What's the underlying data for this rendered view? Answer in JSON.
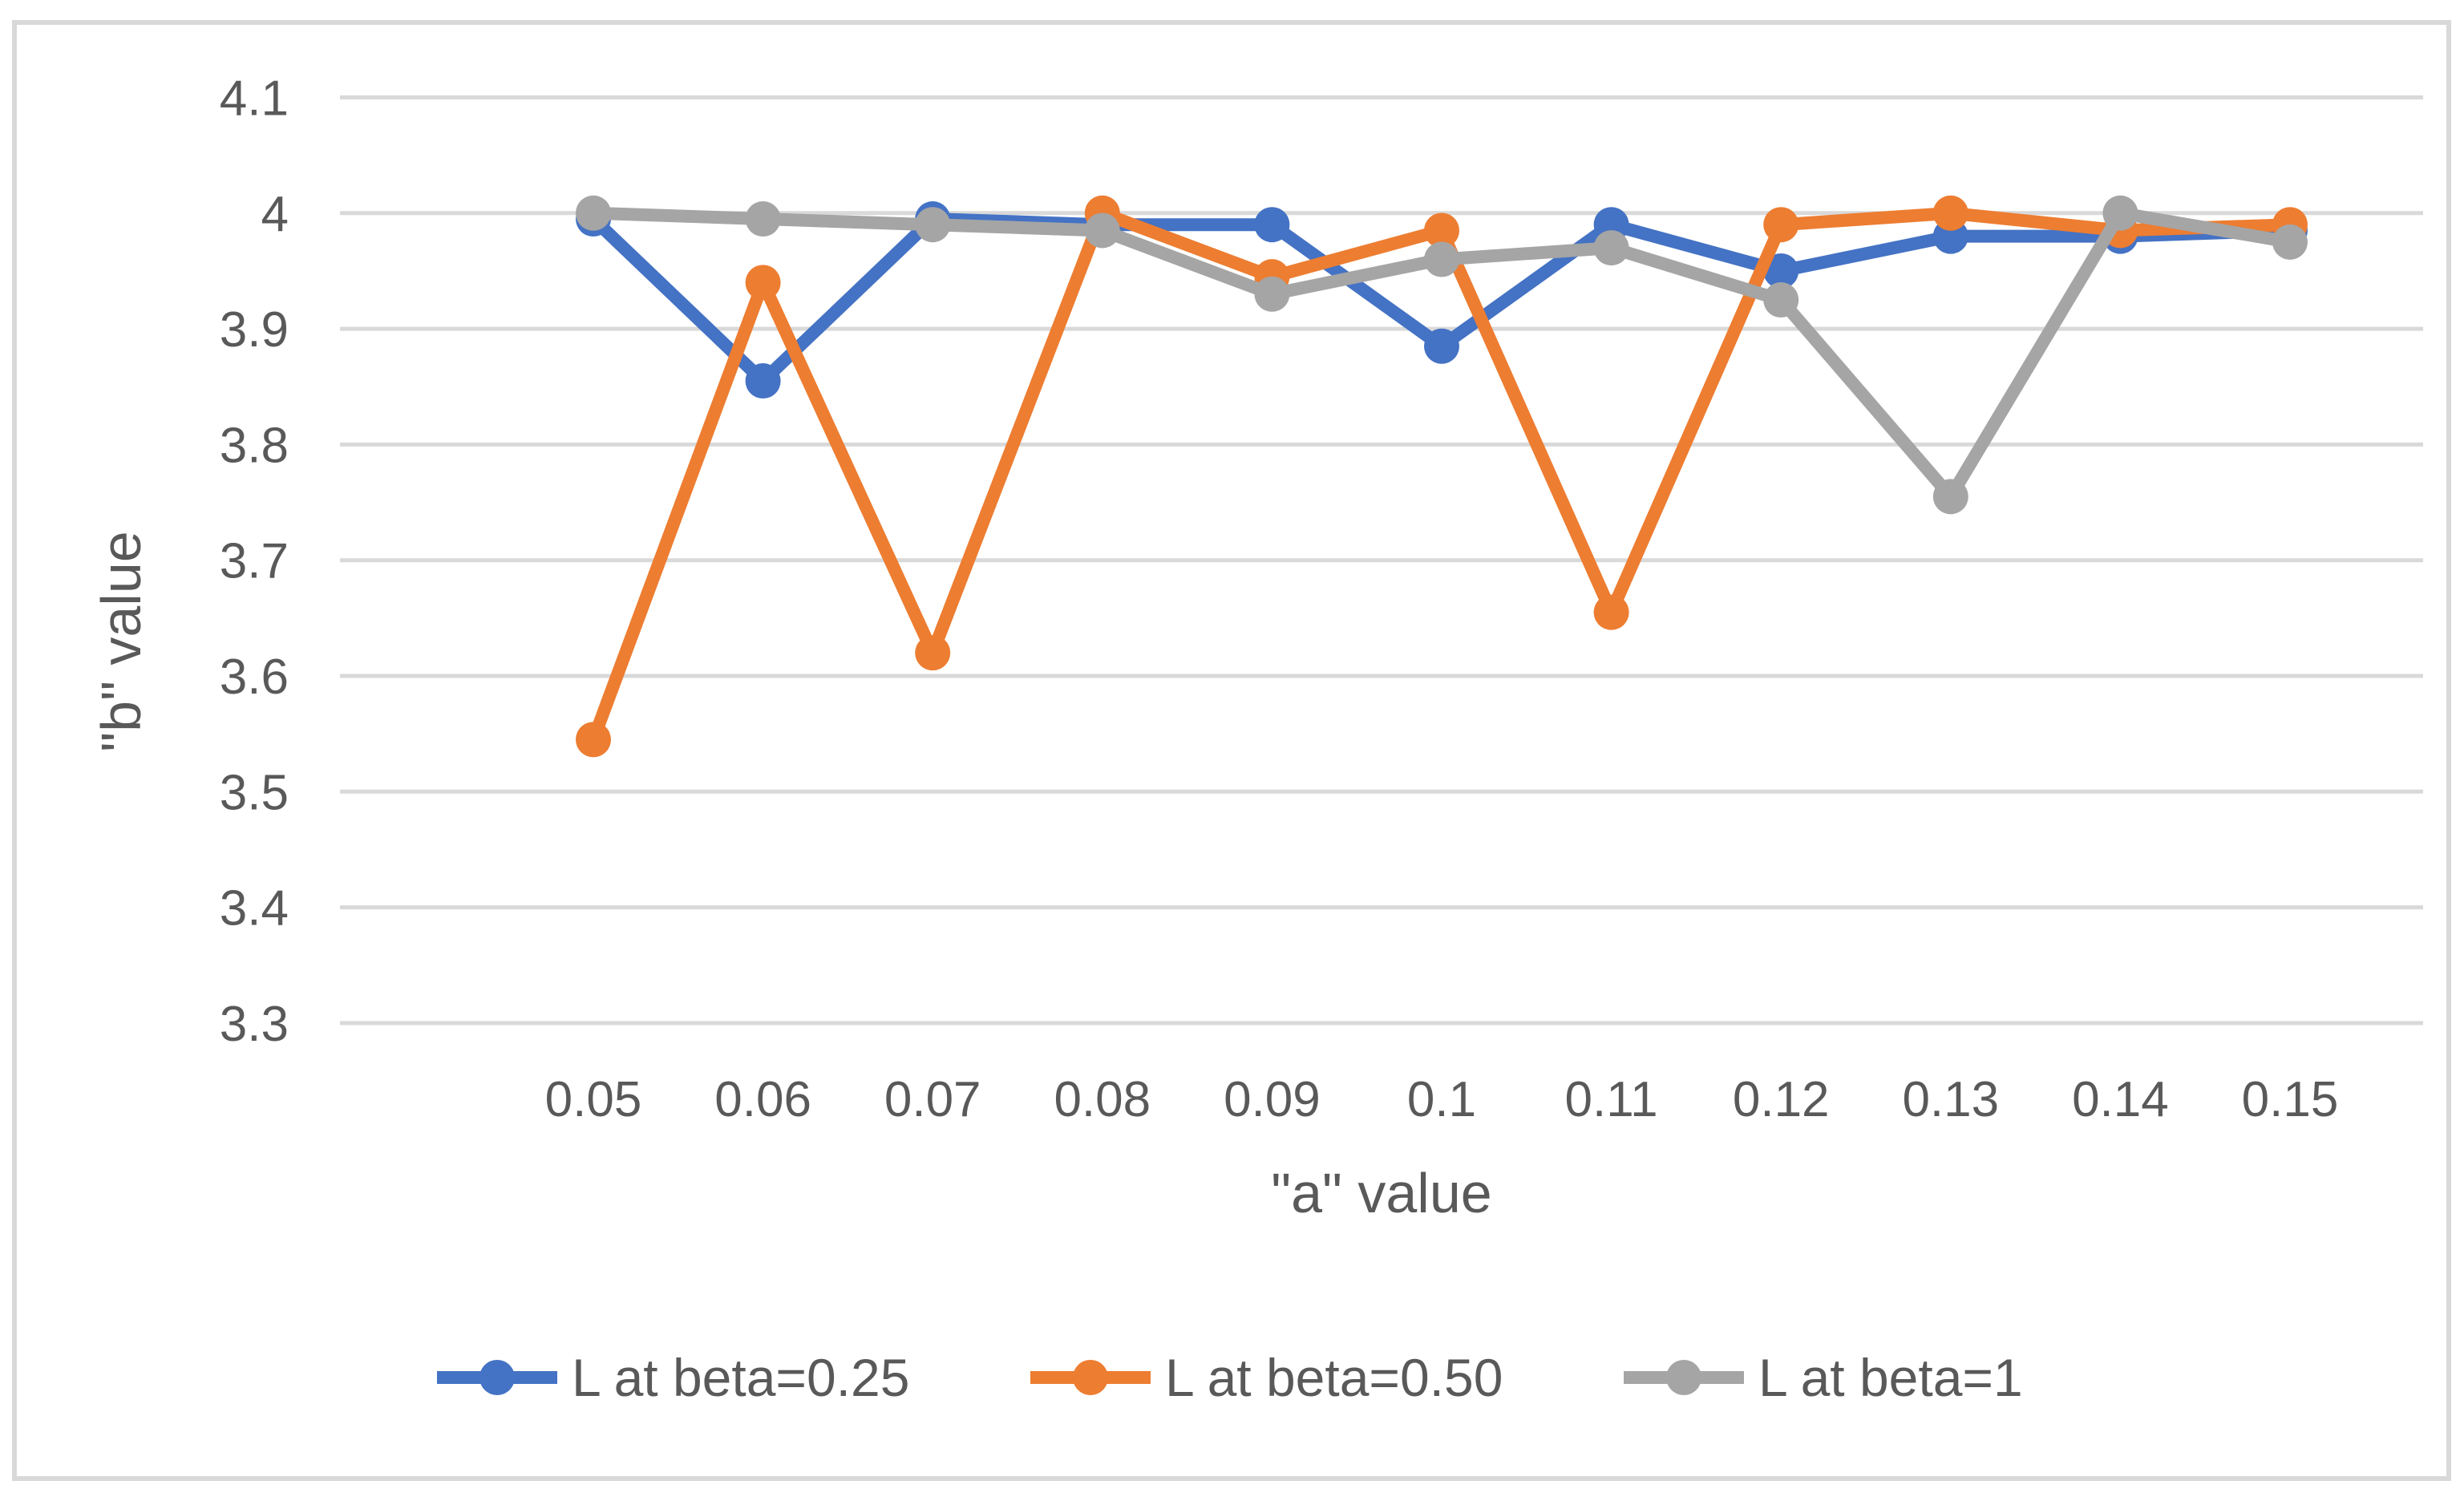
{
  "chart_data": {
    "type": "line",
    "title": "",
    "xlabel": "\"a\" value",
    "ylabel": "\"b\" value",
    "x_tick_labels": [
      "0.05",
      "0.06",
      "0.07",
      "0.08",
      "0.09",
      "0.1",
      "0.11",
      "0.12",
      "0.13",
      "0.14",
      "0.15"
    ],
    "x": [
      0.05,
      0.06,
      0.07,
      0.08,
      0.09,
      0.1,
      0.11,
      0.12,
      0.13,
      0.14,
      0.15
    ],
    "series": [
      {
        "name": "L at beta=0.25",
        "color": "#4472C4",
        "values": [
          3.995,
          3.855,
          3.995,
          3.99,
          3.99,
          3.885,
          3.99,
          3.95,
          3.98,
          3.98,
          3.985
        ]
      },
      {
        "name": "L at beta=0.50",
        "color": "#ED7D31",
        "values": [
          3.545,
          3.94,
          3.62,
          4.0,
          3.945,
          3.985,
          3.655,
          3.99,
          4.0,
          3.985,
          3.99
        ]
      },
      {
        "name": "L at beta=1",
        "color": "#A5A5A5",
        "values": [
          4.0,
          3.995,
          3.99,
          3.985,
          3.93,
          3.96,
          3.97,
          3.925,
          3.755,
          4.0,
          3.975
        ]
      }
    ],
    "ylim": [
      3.3,
      4.1
    ],
    "y_ticks": [
      "4.1",
      "4",
      "3.9",
      "3.8",
      "3.7",
      "3.6",
      "3.5",
      "3.4",
      "3.3"
    ],
    "grid": true,
    "legend_position": "bottom"
  },
  "colors": {
    "gridline": "#D9D9D9",
    "frame_border": "#D9D9D9",
    "text": "#595959",
    "background": "#FFFFFF"
  }
}
